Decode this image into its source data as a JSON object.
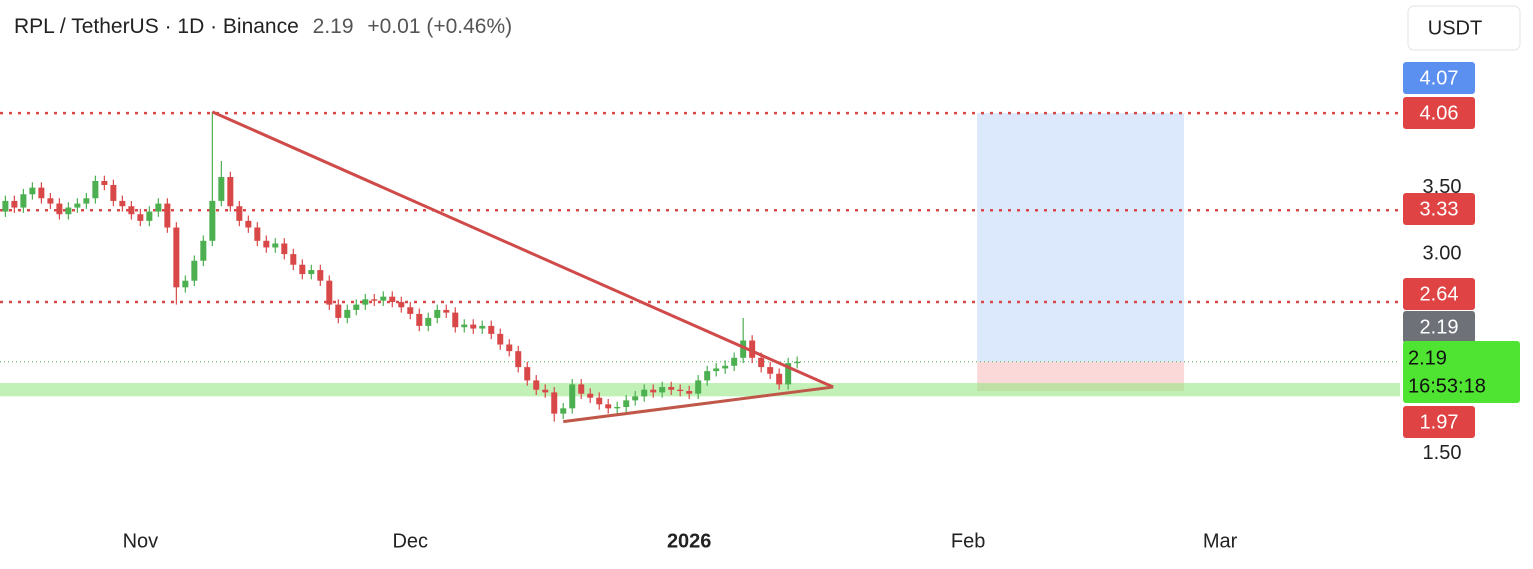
{
  "header": {
    "symbol": "RPL / TetherUS · 1D · Binance",
    "last": "2.19",
    "change": "+0.01 (+0.46%)",
    "currency": "USDT"
  },
  "chart_data": {
    "type": "candlestick",
    "up_color": "#4caf50",
    "down_color": "#d94848",
    "open": [
      3.32,
      3.4,
      3.35,
      3.45,
      3.5,
      3.42,
      3.38,
      3.3,
      3.35,
      3.38,
      3.42,
      3.55,
      3.52,
      3.4,
      3.36,
      3.3,
      3.25,
      3.32,
      3.38,
      3.2,
      2.75,
      2.8,
      2.95,
      3.1,
      3.4,
      3.58,
      3.36,
      3.25,
      3.2,
      3.1,
      3.05,
      3.08,
      3.0,
      2.92,
      2.85,
      2.88,
      2.8,
      2.62,
      2.52,
      2.58,
      2.62,
      2.66,
      2.65,
      2.68,
      2.64,
      2.6,
      2.55,
      2.46,
      2.52,
      2.58,
      2.56,
      2.45,
      2.47,
      2.44,
      2.46,
      2.4,
      2.32,
      2.27,
      2.15,
      2.05,
      1.98,
      1.96,
      1.8,
      1.84,
      2.02,
      1.95,
      1.92,
      1.87,
      1.84,
      1.85,
      1.9,
      1.93,
      1.98,
      1.96,
      2.0,
      1.98,
      1.97,
      1.95,
      2.05,
      2.12,
      2.14,
      2.16,
      2.22,
      2.35,
      2.22,
      2.15,
      2.1,
      2.02,
      2.18
    ],
    "high": [
      3.44,
      3.44,
      3.49,
      3.54,
      3.54,
      3.46,
      3.42,
      3.39,
      3.42,
      3.46,
      3.59,
      3.59,
      3.56,
      3.44,
      3.4,
      3.34,
      3.36,
      3.42,
      3.42,
      3.24,
      2.84,
      2.99,
      3.14,
      4.07,
      3.7,
      3.62,
      3.4,
      3.29,
      3.24,
      3.14,
      3.12,
      3.12,
      3.04,
      2.96,
      2.92,
      2.92,
      2.84,
      2.66,
      2.62,
      2.66,
      2.7,
      2.7,
      2.72,
      2.72,
      2.68,
      2.64,
      2.59,
      2.56,
      2.62,
      2.62,
      2.6,
      2.51,
      2.51,
      2.5,
      2.5,
      2.44,
      2.36,
      2.31,
      2.19,
      2.09,
      2.02,
      2.0,
      1.88,
      2.06,
      2.06,
      1.99,
      1.96,
      1.91,
      1.89,
      1.94,
      1.97,
      2.02,
      2.02,
      2.04,
      2.04,
      2.02,
      2.01,
      2.09,
      2.16,
      2.18,
      2.2,
      2.26,
      2.52,
      2.39,
      2.26,
      2.19,
      2.14,
      2.22,
      2.23
    ],
    "low": [
      3.28,
      3.31,
      3.31,
      3.41,
      3.38,
      3.34,
      3.26,
      3.26,
      3.31,
      3.34,
      3.38,
      3.48,
      3.36,
      3.32,
      3.26,
      3.21,
      3.21,
      3.28,
      3.16,
      2.62,
      2.71,
      2.76,
      2.91,
      3.06,
      3.36,
      3.32,
      3.21,
      3.16,
      3.06,
      3.01,
      3.01,
      2.96,
      2.88,
      2.81,
      2.81,
      2.76,
      2.58,
      2.48,
      2.48,
      2.54,
      2.58,
      2.61,
      2.61,
      2.6,
      2.56,
      2.51,
      2.42,
      2.42,
      2.48,
      2.52,
      2.41,
      2.41,
      2.4,
      2.4,
      2.36,
      2.28,
      2.23,
      2.11,
      2.01,
      1.94,
      1.92,
      1.74,
      1.76,
      1.8,
      1.91,
      1.88,
      1.83,
      1.8,
      1.8,
      1.81,
      1.86,
      1.89,
      1.92,
      1.92,
      1.94,
      1.93,
      1.91,
      1.91,
      2.01,
      2.08,
      2.1,
      2.12,
      2.18,
      2.18,
      2.11,
      2.06,
      1.98,
      1.98,
      2.14
    ],
    "close": [
      3.4,
      3.35,
      3.45,
      3.5,
      3.42,
      3.38,
      3.3,
      3.35,
      3.38,
      3.42,
      3.55,
      3.52,
      3.4,
      3.36,
      3.3,
      3.25,
      3.32,
      3.38,
      3.2,
      2.75,
      2.8,
      2.95,
      3.1,
      3.4,
      3.58,
      3.36,
      3.25,
      3.2,
      3.1,
      3.05,
      3.08,
      3.0,
      2.92,
      2.85,
      2.88,
      2.8,
      2.62,
      2.52,
      2.58,
      2.62,
      2.66,
      2.65,
      2.68,
      2.64,
      2.6,
      2.55,
      2.46,
      2.52,
      2.58,
      2.56,
      2.45,
      2.47,
      2.44,
      2.46,
      2.4,
      2.32,
      2.27,
      2.15,
      2.05,
      1.98,
      1.96,
      1.8,
      1.84,
      2.02,
      1.95,
      1.92,
      1.87,
      1.84,
      1.85,
      1.9,
      1.93,
      1.98,
      1.96,
      2.0,
      1.98,
      1.97,
      1.95,
      2.05,
      2.12,
      2.14,
      2.16,
      2.22,
      2.35,
      2.22,
      2.15,
      2.1,
      2.02,
      2.18,
      2.19
    ],
    "xlim": [
      -0.6,
      155
    ],
    "xticks": [
      {
        "value": 15,
        "label": "Nov"
      },
      {
        "value": 45,
        "label": "Dec"
      },
      {
        "value": 76,
        "label": "2026"
      },
      {
        "value": 107,
        "label": "Feb"
      },
      {
        "value": 135,
        "label": "Mar"
      }
    ],
    "ylim": [
      1.0,
      4.46
    ],
    "yticks": [
      {
        "value": 1.5,
        "label": "1.50"
      },
      {
        "value": 3.0,
        "label": "3.00"
      },
      {
        "value": 3.5,
        "label": "3.50"
      }
    ],
    "levels": [
      4.06,
      3.33,
      2.64
    ],
    "level_color": "#d94848",
    "support_zone": [
      1.93,
      2.03
    ],
    "support_color": "#8ee67a",
    "trendlines": [
      {
        "x": [
          23,
          92
        ],
        "y": [
          4.07,
          2.0
        ],
        "color": "#d04a4a"
      },
      {
        "x": [
          62,
          92
        ],
        "y": [
          1.74,
          2.0
        ],
        "color": "#c0584a"
      }
    ],
    "position": {
      "x": [
        108,
        131
      ],
      "entry": 2.19,
      "target": 4.06,
      "stop": 1.97
    },
    "price_labels": [
      {
        "value": 4.07,
        "color": "#5b8ff0"
      },
      {
        "value": 4.06,
        "color": "#e04343"
      },
      {
        "value": 3.33,
        "color": "#e04343"
      },
      {
        "value": 2.64,
        "color": "#e04343"
      },
      {
        "value": 2.19,
        "color": "#6e7178"
      },
      {
        "value": 2.19,
        "color": "#4fe432",
        "countdown": "16:53:18"
      },
      {
        "value": 1.97,
        "color": "#e04343"
      }
    ]
  }
}
